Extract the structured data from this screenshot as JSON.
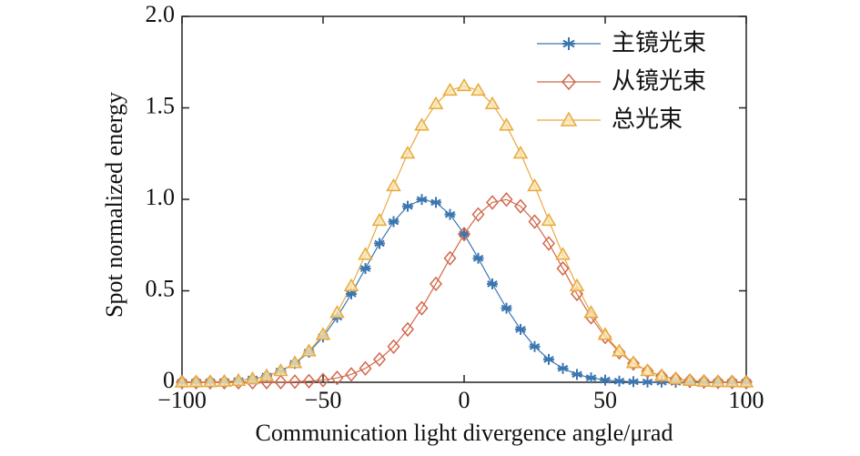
{
  "chart_data": {
    "type": "line",
    "xlabel": "Communication light divergence angle/μrad",
    "ylabel": "Spot normalized energy",
    "x": [
      -100,
      -95,
      -90,
      -85,
      -80,
      -75,
      -70,
      -65,
      -60,
      -55,
      -50,
      -45,
      -40,
      -35,
      -30,
      -25,
      -20,
      -15,
      -10,
      -5,
      0,
      5,
      10,
      15,
      20,
      25,
      30,
      35,
      40,
      45,
      50,
      55,
      60,
      65,
      70,
      75,
      80,
      85,
      90,
      95,
      100
    ],
    "series": [
      {
        "name": "主镜光束",
        "color": "#3b76b0",
        "marker": "star",
        "values": [
          0,
          0.001,
          0.002,
          0.004,
          0.009,
          0.018,
          0.034,
          0.061,
          0.103,
          0.164,
          0.248,
          0.356,
          0.483,
          0.622,
          0.759,
          0.878,
          0.962,
          0.999,
          0.983,
          0.917,
          0.81,
          0.678,
          0.538,
          0.405,
          0.289,
          0.195,
          0.125,
          0.076,
          0.043,
          0.024,
          0.012,
          0.006,
          0.003,
          0.001,
          0.001,
          0,
          0,
          0,
          0,
          0,
          0
        ]
      },
      {
        "name": "从镜光束",
        "color": "#d2674a",
        "marker": "diamond",
        "values": [
          0,
          0,
          0,
          0,
          0,
          0,
          0.001,
          0.001,
          0.003,
          0.006,
          0.012,
          0.024,
          0.043,
          0.076,
          0.125,
          0.195,
          0.289,
          0.405,
          0.538,
          0.678,
          0.81,
          0.917,
          0.983,
          0.999,
          0.962,
          0.878,
          0.759,
          0.622,
          0.483,
          0.356,
          0.248,
          0.164,
          0.103,
          0.061,
          0.034,
          0.018,
          0.009,
          0.004,
          0.002,
          0.001,
          0
        ]
      },
      {
        "name": "总光束",
        "color": "#e9a93f",
        "marker": "triangle",
        "values": [
          0,
          0.001,
          0.002,
          0.004,
          0.009,
          0.018,
          0.035,
          0.062,
          0.106,
          0.17,
          0.26,
          0.38,
          0.526,
          0.698,
          0.884,
          1.073,
          1.251,
          1.404,
          1.521,
          1.595,
          1.62,
          1.595,
          1.521,
          1.404,
          1.251,
          1.073,
          0.884,
          0.698,
          0.526,
          0.38,
          0.26,
          0.17,
          0.106,
          0.062,
          0.035,
          0.018,
          0.009,
          0.004,
          0.002,
          0.001,
          0
        ]
      }
    ],
    "xlim": [
      -100,
      100
    ],
    "xticks": [
      {
        "value": -100,
        "label": "−100"
      },
      {
        "value": -50,
        "label": "−50"
      },
      0,
      50,
      100
    ],
    "ylim": [
      0,
      2
    ],
    "yticks": [
      0,
      0.5,
      {
        "value": 1,
        "label": "1.0"
      },
      1.5,
      {
        "value": 2,
        "label": "2.0"
      }
    ],
    "legend": "upper right"
  }
}
